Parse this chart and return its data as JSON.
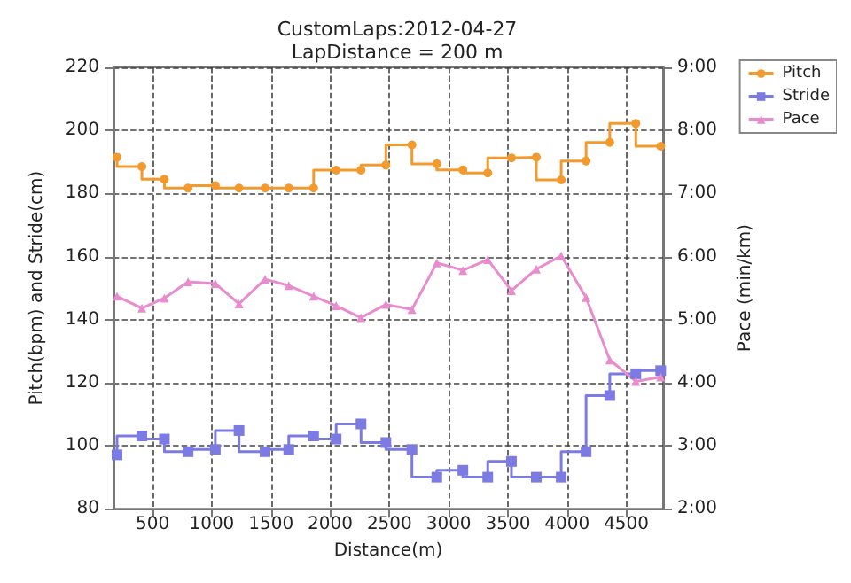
{
  "chart_data": {
    "type": "line",
    "title": "CustomLaps:2012-04-27",
    "subtitle": "LapDistance = 200 m",
    "xlabel": "Distance(m)",
    "ylabel": "Pitch(bpm) and Stride(cm)",
    "y2label": "Pace (min/km)",
    "x": [
      200,
      410,
      600,
      800,
      1030,
      1230,
      1450,
      1650,
      1860,
      2050,
      2260,
      2470,
      2690,
      2900,
      3120,
      3330,
      3530,
      3740,
      3950,
      4160,
      4360,
      4580,
      4790
    ],
    "series": [
      {
        "name": "Pitch",
        "type": "step",
        "marker": "circle",
        "color": "#f39a2e",
        "values": [
          191.5,
          188.5,
          184.5,
          181.7,
          182.5,
          181.7,
          181.7,
          181.7,
          181.7,
          187.4,
          187.4,
          189,
          195.4,
          189.4,
          187.5,
          186.5,
          191.3,
          191.5,
          184.3,
          190.3,
          196.2,
          202.2,
          195
        ]
      },
      {
        "name": "Stride",
        "type": "step",
        "marker": "square",
        "color": "#7b7be3",
        "values": [
          97.1,
          103.1,
          102.1,
          98.1,
          98.8,
          104.8,
          98.1,
          98.8,
          103.1,
          102.1,
          106.9,
          101,
          98.8,
          90,
          92.2,
          90,
          95,
          90,
          90,
          98.1,
          115.9,
          122.8,
          123.8
        ]
      },
      {
        "name": "Pace",
        "type": "line",
        "marker": "triangle",
        "axis": "y2",
        "color": "#e98ccf",
        "values": [
          5.37,
          5.18,
          5.34,
          5.6,
          5.57,
          5.25,
          5.64,
          5.54,
          5.37,
          5.22,
          5.03,
          5.24,
          5.16,
          5.9,
          5.78,
          5.95,
          5.46,
          5.8,
          6.01,
          5.35,
          4.36,
          4.02,
          4.09
        ]
      }
    ],
    "xlim": [
      170,
      4810
    ],
    "xticks": [
      500,
      1000,
      1500,
      2000,
      2500,
      3000,
      3500,
      4000,
      4500
    ],
    "ylim": [
      80,
      220
    ],
    "yticks": [
      80,
      100,
      120,
      140,
      160,
      180,
      200,
      220
    ],
    "y2lim": [
      2,
      9
    ],
    "y2ticks": [
      {
        "value": 2,
        "label": "2:00"
      },
      {
        "value": 3,
        "label": "3:00"
      },
      {
        "value": 4,
        "label": "4:00"
      },
      {
        "value": 5,
        "label": "5:00"
      },
      {
        "value": 6,
        "label": "6:00"
      },
      {
        "value": 7,
        "label": "7:00"
      },
      {
        "value": 8,
        "label": "8:00"
      },
      {
        "value": 9,
        "label": "9:00"
      }
    ],
    "grid": true,
    "legend": "top right",
    "line_style": "solid"
  }
}
